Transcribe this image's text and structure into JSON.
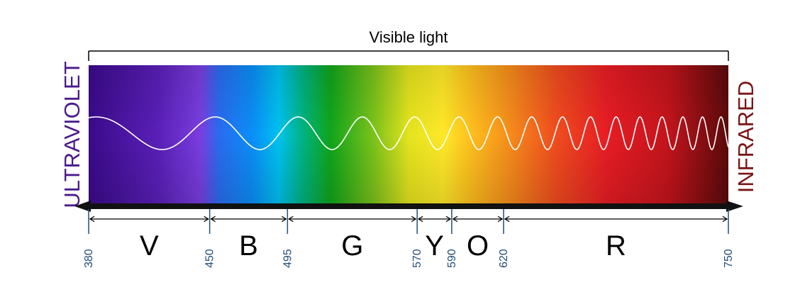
{
  "title": "Visible light",
  "left_label": "ULTRAVIOLET",
  "right_label": "INFRARED",
  "colors": {
    "ultraviolet": "#4b1a8c",
    "infrared": "#7a1414",
    "tick": "#1f4e79",
    "bracket": "#000000",
    "wave": "#ffffff"
  },
  "spectrum": {
    "range_nm": [
      380,
      750
    ],
    "gradient": [
      {
        "nm": 380,
        "color": "#3a0a8a"
      },
      {
        "nm": 420,
        "color": "#5a1fb8"
      },
      {
        "nm": 445,
        "color": "#7a3ee0"
      },
      {
        "nm": 455,
        "color": "#2a6bf0"
      },
      {
        "nm": 475,
        "color": "#0a8ff7"
      },
      {
        "nm": 490,
        "color": "#00c2f0"
      },
      {
        "nm": 505,
        "color": "#00b37a"
      },
      {
        "nm": 520,
        "color": "#10a51a"
      },
      {
        "nm": 545,
        "color": "#7cc31a"
      },
      {
        "nm": 565,
        "color": "#e4e41e"
      },
      {
        "nm": 585,
        "color": "#ffe928"
      },
      {
        "nm": 600,
        "color": "#ffc21e"
      },
      {
        "nm": 620,
        "color": "#f7951b"
      },
      {
        "nm": 650,
        "color": "#f04d1e"
      },
      {
        "nm": 680,
        "color": "#e81c24"
      },
      {
        "nm": 715,
        "color": "#c4141c"
      },
      {
        "nm": 750,
        "color": "#5a0a0a"
      }
    ]
  },
  "ticks": [
    {
      "value": 380,
      "label": "380"
    },
    {
      "value": 450,
      "label": "450"
    },
    {
      "value": 495,
      "label": "495"
    },
    {
      "value": 570,
      "label": "570"
    },
    {
      "value": 590,
      "label": "590"
    },
    {
      "value": 620,
      "label": "620"
    },
    {
      "value": 750,
      "label": "750"
    }
  ],
  "bands": [
    {
      "label": "V",
      "from": 380,
      "to": 450
    },
    {
      "label": "B",
      "from": 450,
      "to": 495
    },
    {
      "label": "G",
      "from": 495,
      "to": 570
    },
    {
      "label": "Y",
      "from": 570,
      "to": 590
    },
    {
      "label": "O",
      "from": 590,
      "to": 620
    },
    {
      "label": "R",
      "from": 620,
      "to": 750
    }
  ]
}
